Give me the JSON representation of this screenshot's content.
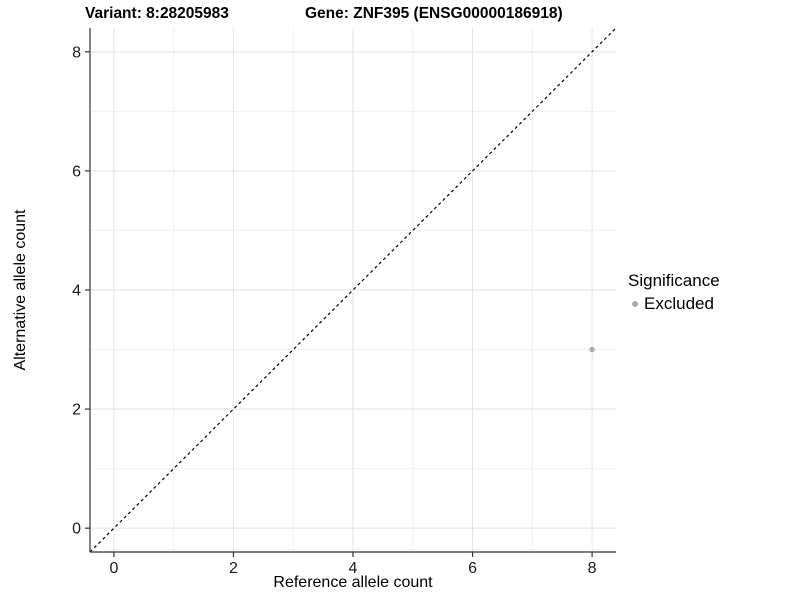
{
  "chart_data": {
    "type": "scatter",
    "titles": [
      {
        "text": "Variant: 8:28205983"
      },
      {
        "text": "Gene: ZNF395 (ENSG00000186918)"
      }
    ],
    "xlabel": "Reference allele count",
    "ylabel": "Alternative allele count",
    "xlim": [
      -0.4,
      8.4
    ],
    "ylim": [
      -0.4,
      8.4
    ],
    "x_ticks": [
      0,
      2,
      4,
      6,
      8
    ],
    "y_ticks": [
      0,
      2,
      4,
      6,
      8
    ],
    "x_minor_ticks": [
      1,
      3,
      5,
      7
    ],
    "y_minor_ticks": [
      1,
      3,
      5,
      7
    ],
    "grid": "major+minor",
    "reference_line": {
      "type": "identity",
      "equation": "y = x",
      "style": "dashed",
      "color": "#000000"
    },
    "series": [
      {
        "name": "Excluded",
        "color": "#ababab",
        "points": [
          {
            "x": 8,
            "y": 3
          }
        ]
      }
    ],
    "legend": {
      "title": "Significance",
      "position": "right",
      "items": [
        {
          "label": "Excluded",
          "color": "#ababab"
        }
      ]
    },
    "style": {
      "background": "#ffffff",
      "grid_major_color": "#e3e3e3",
      "grid_minor_color": "#f0f0f0",
      "axis_color": "#333333",
      "tick_label_color": "#1a1a1a",
      "text_color": "#000000"
    }
  }
}
